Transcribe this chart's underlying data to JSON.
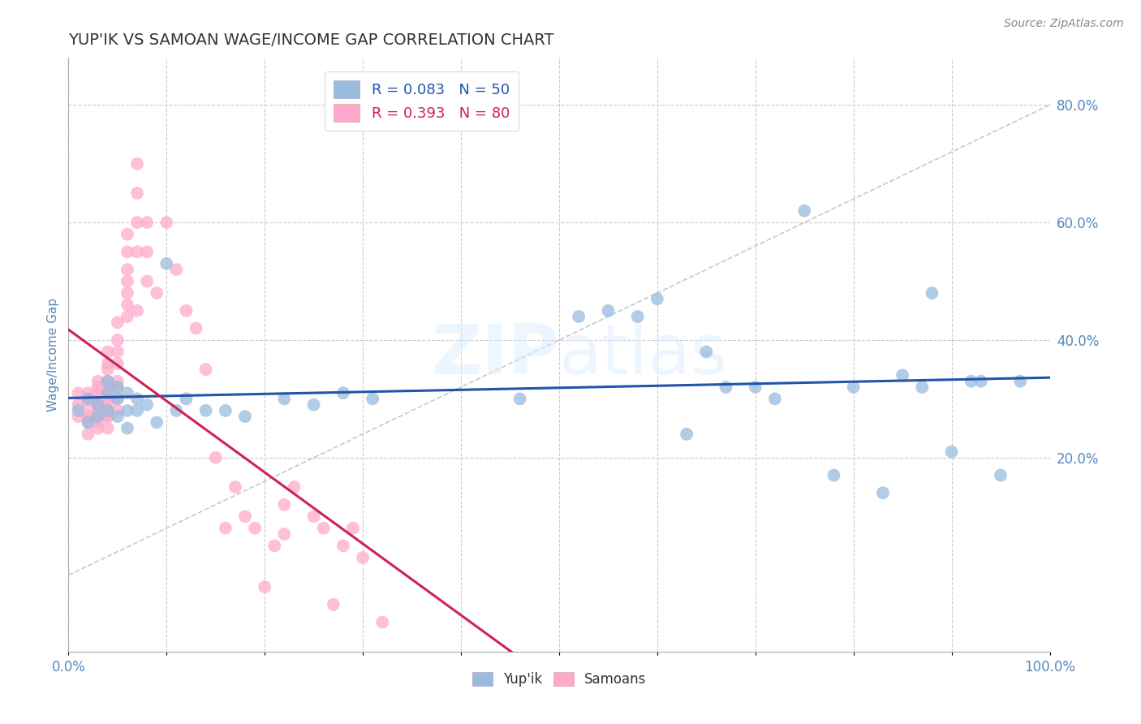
{
  "title": "YUP'IK VS SAMOAN WAGE/INCOME GAP CORRELATION CHART",
  "source": "Source: ZipAtlas.com",
  "ylabel": "Wage/Income Gap",
  "xlim": [
    0.0,
    1.0
  ],
  "ylim": [
    -0.13,
    0.88
  ],
  "xticks": [
    0.0,
    0.1,
    0.2,
    0.3,
    0.4,
    0.5,
    0.6,
    0.7,
    0.8,
    0.9,
    1.0
  ],
  "yticks": [
    0.2,
    0.4,
    0.6,
    0.8
  ],
  "legend_r1": "R = 0.083",
  "legend_n1": "N = 50",
  "legend_r2": "R = 0.393",
  "legend_n2": "N = 80",
  "background_color": "#ffffff",
  "grid_color": "#cccccc",
  "blue_color": "#99bbdd",
  "pink_color": "#ffaacc",
  "blue_line_color": "#2255aa",
  "pink_line_color": "#cc2255",
  "title_color": "#333333",
  "axis_label_color": "#5588bb",
  "yupik_x": [
    0.01,
    0.02,
    0.02,
    0.03,
    0.03,
    0.04,
    0.04,
    0.04,
    0.05,
    0.05,
    0.05,
    0.06,
    0.06,
    0.06,
    0.07,
    0.07,
    0.08,
    0.09,
    0.1,
    0.11,
    0.12,
    0.14,
    0.16,
    0.18,
    0.22,
    0.25,
    0.28,
    0.31,
    0.46,
    0.52,
    0.55,
    0.58,
    0.6,
    0.63,
    0.65,
    0.67,
    0.7,
    0.72,
    0.75,
    0.78,
    0.8,
    0.83,
    0.85,
    0.87,
    0.88,
    0.9,
    0.92,
    0.93,
    0.95,
    0.97
  ],
  "yupik_y": [
    0.28,
    0.3,
    0.26,
    0.29,
    0.27,
    0.31,
    0.28,
    0.33,
    0.3,
    0.27,
    0.32,
    0.28,
    0.31,
    0.25,
    0.28,
    0.3,
    0.29,
    0.26,
    0.53,
    0.28,
    0.3,
    0.28,
    0.28,
    0.27,
    0.3,
    0.29,
    0.31,
    0.3,
    0.3,
    0.44,
    0.45,
    0.44,
    0.47,
    0.24,
    0.38,
    0.32,
    0.32,
    0.3,
    0.62,
    0.17,
    0.32,
    0.14,
    0.34,
    0.32,
    0.48,
    0.21,
    0.33,
    0.33,
    0.17,
    0.33
  ],
  "samoan_x": [
    0.01,
    0.01,
    0.01,
    0.02,
    0.02,
    0.02,
    0.02,
    0.02,
    0.02,
    0.02,
    0.03,
    0.03,
    0.03,
    0.03,
    0.03,
    0.03,
    0.03,
    0.03,
    0.03,
    0.03,
    0.03,
    0.04,
    0.04,
    0.04,
    0.04,
    0.04,
    0.04,
    0.04,
    0.04,
    0.04,
    0.04,
    0.04,
    0.04,
    0.04,
    0.05,
    0.05,
    0.05,
    0.05,
    0.05,
    0.05,
    0.05,
    0.05,
    0.06,
    0.06,
    0.06,
    0.06,
    0.06,
    0.06,
    0.06,
    0.07,
    0.07,
    0.07,
    0.07,
    0.07,
    0.08,
    0.08,
    0.08,
    0.09,
    0.1,
    0.11,
    0.12,
    0.13,
    0.14,
    0.15,
    0.16,
    0.17,
    0.18,
    0.19,
    0.2,
    0.21,
    0.22,
    0.22,
    0.23,
    0.25,
    0.26,
    0.27,
    0.28,
    0.29,
    0.3,
    0.32
  ],
  "samoan_y": [
    0.27,
    0.29,
    0.31,
    0.24,
    0.27,
    0.29,
    0.31,
    0.27,
    0.3,
    0.26,
    0.25,
    0.27,
    0.28,
    0.3,
    0.32,
    0.27,
    0.29,
    0.31,
    0.33,
    0.28,
    0.26,
    0.25,
    0.27,
    0.29,
    0.31,
    0.28,
    0.3,
    0.32,
    0.27,
    0.33,
    0.35,
    0.38,
    0.36,
    0.28,
    0.28,
    0.3,
    0.33,
    0.36,
    0.32,
    0.38,
    0.4,
    0.43,
    0.44,
    0.48,
    0.46,
    0.52,
    0.58,
    0.5,
    0.55,
    0.45,
    0.6,
    0.55,
    0.65,
    0.7,
    0.55,
    0.6,
    0.5,
    0.48,
    0.6,
    0.52,
    0.45,
    0.42,
    0.35,
    0.2,
    0.08,
    0.15,
    0.1,
    0.08,
    -0.02,
    0.05,
    0.12,
    0.07,
    0.15,
    0.1,
    0.08,
    -0.05,
    0.05,
    0.08,
    0.03,
    -0.08
  ]
}
